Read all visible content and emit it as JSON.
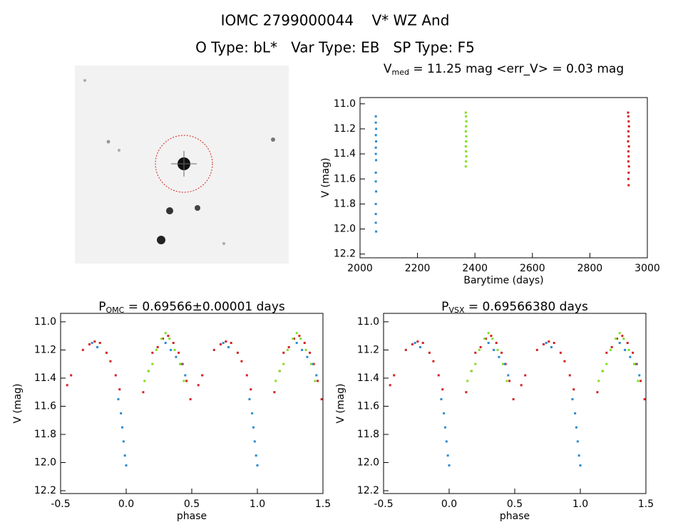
{
  "header": {
    "title": "IOMC 2799000044    V* WZ And",
    "subtitle": "O Type: bL*   Var Type: EB   SP Type: F5"
  },
  "chart_data": [
    {
      "type": "scatter",
      "title_parts": [
        "V",
        "med",
        " = 11.25 mag <err_V> = 0.03 mag"
      ],
      "xlabel": "Barytime (days)",
      "ylabel": "V (mag)",
      "xlim": [
        2000,
        3000
      ],
      "xticks": [
        2000,
        2200,
        2400,
        2600,
        2800,
        3000
      ],
      "ylim": [
        12.23,
        10.95
      ],
      "yticks": [
        {
          "value": 11,
          "label": "11.0"
        },
        11.2,
        11.4,
        11.6,
        11.8,
        {
          "value": 12,
          "label": "12.0"
        },
        12.2
      ],
      "series": [
        {
          "color": "#2a8bcf",
          "x": [
            2055,
            2055,
            2056,
            2055,
            2056,
            2055,
            2055,
            2056,
            2055,
            2055,
            2056,
            2055,
            2055,
            2055,
            2056
          ],
          "values": [
            11.1,
            11.15,
            11.2,
            11.25,
            11.3,
            11.35,
            11.4,
            11.45,
            11.55,
            11.62,
            11.7,
            11.8,
            11.88,
            11.95,
            12.02
          ]
        },
        {
          "color": "#7ee020",
          "x": [
            2368,
            2369,
            2370,
            2369,
            2368,
            2370,
            2369,
            2368,
            2369,
            2370,
            2369,
            2368
          ],
          "values": [
            11.07,
            11.1,
            11.14,
            11.18,
            11.22,
            11.26,
            11.3,
            11.34,
            11.38,
            11.42,
            11.46,
            11.5
          ]
        },
        {
          "color": "#d42020",
          "x": [
            2933,
            2934,
            2935,
            2936,
            2934,
            2935,
            2933,
            2936,
            2934,
            2935,
            2934,
            2936,
            2935,
            2934,
            2935
          ],
          "values": [
            11.07,
            11.1,
            11.14,
            11.18,
            11.22,
            11.26,
            11.3,
            11.34,
            11.38,
            11.42,
            11.46,
            11.5,
            11.55,
            11.6,
            11.65
          ]
        }
      ]
    },
    {
      "type": "scatter",
      "title_parts": [
        "P",
        "OMC",
        " = 0.69566±0.00001 days"
      ],
      "xlabel": "phase",
      "ylabel": "V (mag)",
      "xlim": [
        -0.5,
        1.5
      ],
      "xticks": [
        -0.5,
        {
          "value": 0,
          "label": "0.0"
        },
        0.5,
        {
          "value": 1,
          "label": "1.0"
        },
        1.5
      ],
      "ylim": [
        12.22,
        10.94
      ],
      "yticks": [
        {
          "value": 11,
          "label": "11.0"
        },
        11.2,
        11.4,
        11.6,
        11.8,
        {
          "value": 12,
          "label": "12.0"
        },
        12.2
      ],
      "series": [
        {
          "color": "#d42020",
          "x": [
            -0.45,
            -0.42,
            -0.33,
            -0.28,
            -0.24,
            -0.2,
            -0.15,
            -0.12,
            -0.08,
            -0.05,
            0.13,
            0.17,
            0.2,
            0.24,
            0.28,
            0.32,
            0.36,
            0.4,
            0.43,
            0.46,
            0.49,
            0.55,
            0.58,
            0.67,
            0.72,
            0.76,
            0.8,
            0.85,
            0.88,
            0.92,
            0.95,
            1.13,
            1.17,
            1.2,
            1.24,
            1.28,
            1.32,
            1.36,
            1.4,
            1.43,
            1.46,
            1.49
          ],
          "values": [
            11.45,
            11.38,
            11.2,
            11.16,
            11.14,
            11.15,
            11.22,
            11.28,
            11.38,
            11.48,
            11.5,
            11.35,
            11.22,
            11.18,
            11.12,
            11.1,
            11.15,
            11.22,
            11.3,
            11.42,
            11.55,
            11.45,
            11.38,
            11.2,
            11.16,
            11.14,
            11.15,
            11.22,
            11.28,
            11.38,
            11.48,
            11.5,
            11.35,
            11.22,
            11.18,
            11.12,
            11.1,
            11.15,
            11.22,
            11.3,
            11.42,
            11.55
          ]
        },
        {
          "color": "#2a8bcf",
          "x": [
            -0.26,
            -0.22,
            -0.06,
            -0.04,
            -0.03,
            -0.02,
            -0.01,
            0.0,
            0.3,
            0.34,
            0.38,
            0.42,
            0.45,
            0.74,
            0.78,
            0.94,
            0.96,
            0.97,
            0.98,
            0.99,
            1.0,
            1.3,
            1.34,
            1.38,
            1.42,
            1.45
          ],
          "values": [
            11.15,
            11.18,
            11.55,
            11.65,
            11.75,
            11.85,
            11.95,
            12.02,
            11.15,
            11.2,
            11.25,
            11.3,
            11.38,
            11.15,
            11.18,
            11.55,
            11.65,
            11.75,
            11.85,
            11.95,
            12.02,
            11.15,
            11.2,
            11.25,
            11.3,
            11.38
          ]
        },
        {
          "color": "#7ee020",
          "x": [
            0.14,
            0.17,
            0.2,
            0.23,
            0.27,
            0.3,
            0.33,
            0.37,
            0.41,
            0.44,
            1.14,
            1.17,
            1.2,
            1.23,
            1.27,
            1.3,
            1.33,
            1.37,
            1.41,
            1.44
          ],
          "values": [
            11.42,
            11.35,
            11.3,
            11.2,
            11.12,
            11.08,
            11.12,
            11.2,
            11.3,
            11.42,
            11.42,
            11.35,
            11.3,
            11.2,
            11.12,
            11.08,
            11.12,
            11.2,
            11.3,
            11.42
          ]
        }
      ]
    },
    {
      "type": "scatter",
      "title_parts": [
        "P",
        "VSX",
        " = 0.69566380 days"
      ],
      "xlabel": "phase",
      "ylabel": "V (mag)",
      "xlim": [
        -0.5,
        1.5
      ],
      "xticks": [
        -0.5,
        {
          "value": 0,
          "label": "0.0"
        },
        0.5,
        {
          "value": 1,
          "label": "1.0"
        },
        1.5
      ],
      "ylim": [
        12.22,
        10.94
      ],
      "yticks": [
        {
          "value": 11,
          "label": "11.0"
        },
        11.2,
        11.4,
        11.6,
        11.8,
        {
          "value": 12,
          "label": "12.0"
        },
        12.2
      ],
      "series": [
        {
          "color": "#d42020",
          "x": [
            -0.45,
            -0.42,
            -0.33,
            -0.28,
            -0.24,
            -0.2,
            -0.15,
            -0.12,
            -0.08,
            -0.05,
            0.13,
            0.17,
            0.2,
            0.24,
            0.28,
            0.32,
            0.36,
            0.4,
            0.43,
            0.46,
            0.49,
            0.55,
            0.58,
            0.67,
            0.72,
            0.76,
            0.8,
            0.85,
            0.88,
            0.92,
            0.95,
            1.13,
            1.17,
            1.2,
            1.24,
            1.28,
            1.32,
            1.36,
            1.4,
            1.43,
            1.46,
            1.49
          ],
          "values": [
            11.45,
            11.38,
            11.2,
            11.16,
            11.14,
            11.15,
            11.22,
            11.28,
            11.38,
            11.48,
            11.5,
            11.35,
            11.22,
            11.18,
            11.12,
            11.1,
            11.15,
            11.22,
            11.3,
            11.42,
            11.55,
            11.45,
            11.38,
            11.2,
            11.16,
            11.14,
            11.15,
            11.22,
            11.28,
            11.38,
            11.48,
            11.5,
            11.35,
            11.22,
            11.18,
            11.12,
            11.1,
            11.15,
            11.22,
            11.3,
            11.42,
            11.55
          ]
        },
        {
          "color": "#2a8bcf",
          "x": [
            -0.26,
            -0.22,
            -0.06,
            -0.04,
            -0.03,
            -0.02,
            -0.01,
            0.0,
            0.3,
            0.34,
            0.38,
            0.42,
            0.45,
            0.74,
            0.78,
            0.94,
            0.96,
            0.97,
            0.98,
            0.99,
            1.0,
            1.3,
            1.34,
            1.38,
            1.42,
            1.45
          ],
          "values": [
            11.15,
            11.18,
            11.55,
            11.65,
            11.75,
            11.85,
            11.95,
            12.02,
            11.15,
            11.2,
            11.25,
            11.3,
            11.38,
            11.15,
            11.18,
            11.55,
            11.65,
            11.75,
            11.85,
            11.95,
            12.02,
            11.15,
            11.2,
            11.25,
            11.3,
            11.38
          ]
        },
        {
          "color": "#7ee020",
          "x": [
            0.14,
            0.17,
            0.2,
            0.23,
            0.27,
            0.3,
            0.33,
            0.37,
            0.41,
            0.44,
            1.14,
            1.17,
            1.2,
            1.23,
            1.27,
            1.3,
            1.33,
            1.37,
            1.41,
            1.44
          ],
          "values": [
            11.42,
            11.35,
            11.3,
            11.2,
            11.12,
            11.08,
            11.12,
            11.2,
            11.3,
            11.42,
            11.42,
            11.35,
            11.3,
            11.2,
            11.12,
            11.08,
            11.12,
            11.2,
            11.3,
            11.42
          ]
        }
      ]
    }
  ]
}
